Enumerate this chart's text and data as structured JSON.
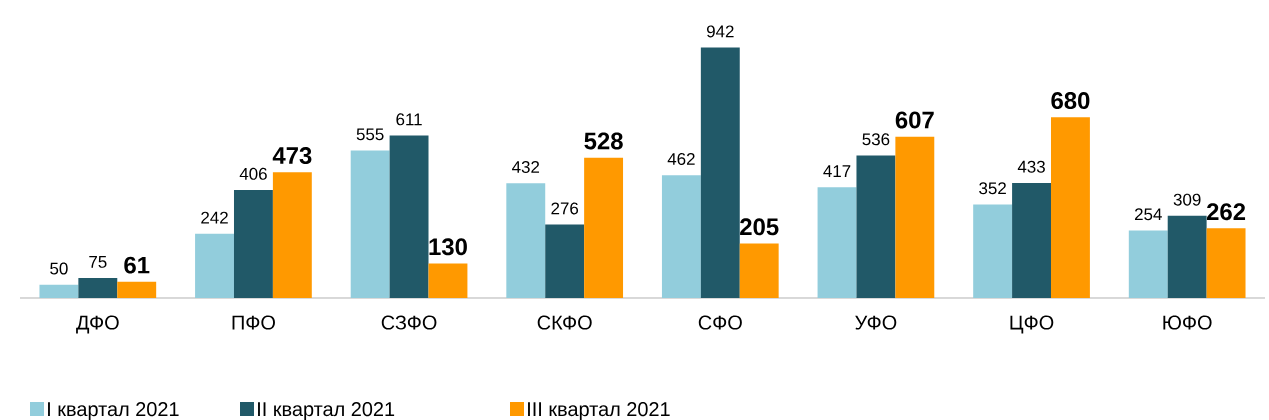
{
  "chart_data": {
    "type": "bar",
    "categories": [
      "ДФО",
      "ПФО",
      "СЗФО",
      "СКФО",
      "СФО",
      "УФО",
      "ЦФО",
      "ЮФО"
    ],
    "series": [
      {
        "name": "I квартал 2021",
        "color": "#92cddc",
        "values": [
          50,
          242,
          555,
          432,
          462,
          417,
          352,
          254
        ]
      },
      {
        "name": "II квартал 2021",
        "color": "#215968",
        "values": [
          75,
          406,
          611,
          276,
          942,
          536,
          433,
          309
        ]
      },
      {
        "name": "III квартал 2021",
        "color": "#ff9900",
        "values": [
          61,
          473,
          130,
          528,
          205,
          607,
          680,
          262
        ]
      }
    ],
    "data_labels": true,
    "legend": "bottom left"
  }
}
